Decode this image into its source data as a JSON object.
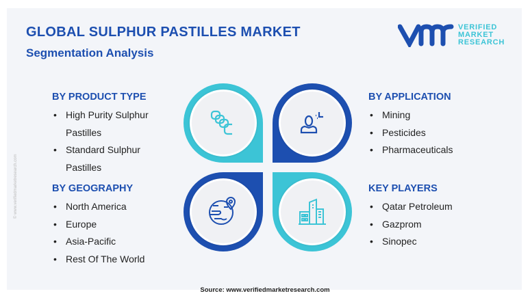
{
  "header": {
    "title": "GLOBAL SULPHUR PASTILLES MARKET",
    "subtitle": "Segmentation Analysis"
  },
  "logo": {
    "line1": "VERIFIED",
    "line2": "MARKET",
    "line3": "RESEARCH"
  },
  "colors": {
    "dark_blue": "#1d4fb0",
    "cyan": "#3cc4d6"
  },
  "sections": {
    "product": {
      "heading": "BY PRODUCT TYPE",
      "items": [
        "High Purity Sulphur Pastilles",
        "Standard Sulphur Pastilles"
      ]
    },
    "geography": {
      "heading": "BY GEOGRAPHY",
      "items": [
        "North America",
        "Europe",
        "Asia-Pacific",
        "Rest Of The World"
      ]
    },
    "application": {
      "heading": "BY APPLICATION",
      "items": [
        "Mining",
        "Pesticides",
        "Pharmaceuticals"
      ]
    },
    "players": {
      "heading": "KEY PLAYERS",
      "items": [
        "Qatar Petroleum",
        "Gazprom",
        "Sinopec"
      ]
    }
  },
  "icons": [
    "pastilles-icon",
    "worker-icon",
    "globe-pin-icon",
    "buildings-icon"
  ],
  "side_watermark": "© www.verifiedmarketresearch.com",
  "source": "Source: www.verifiedmarketresearch.com"
}
